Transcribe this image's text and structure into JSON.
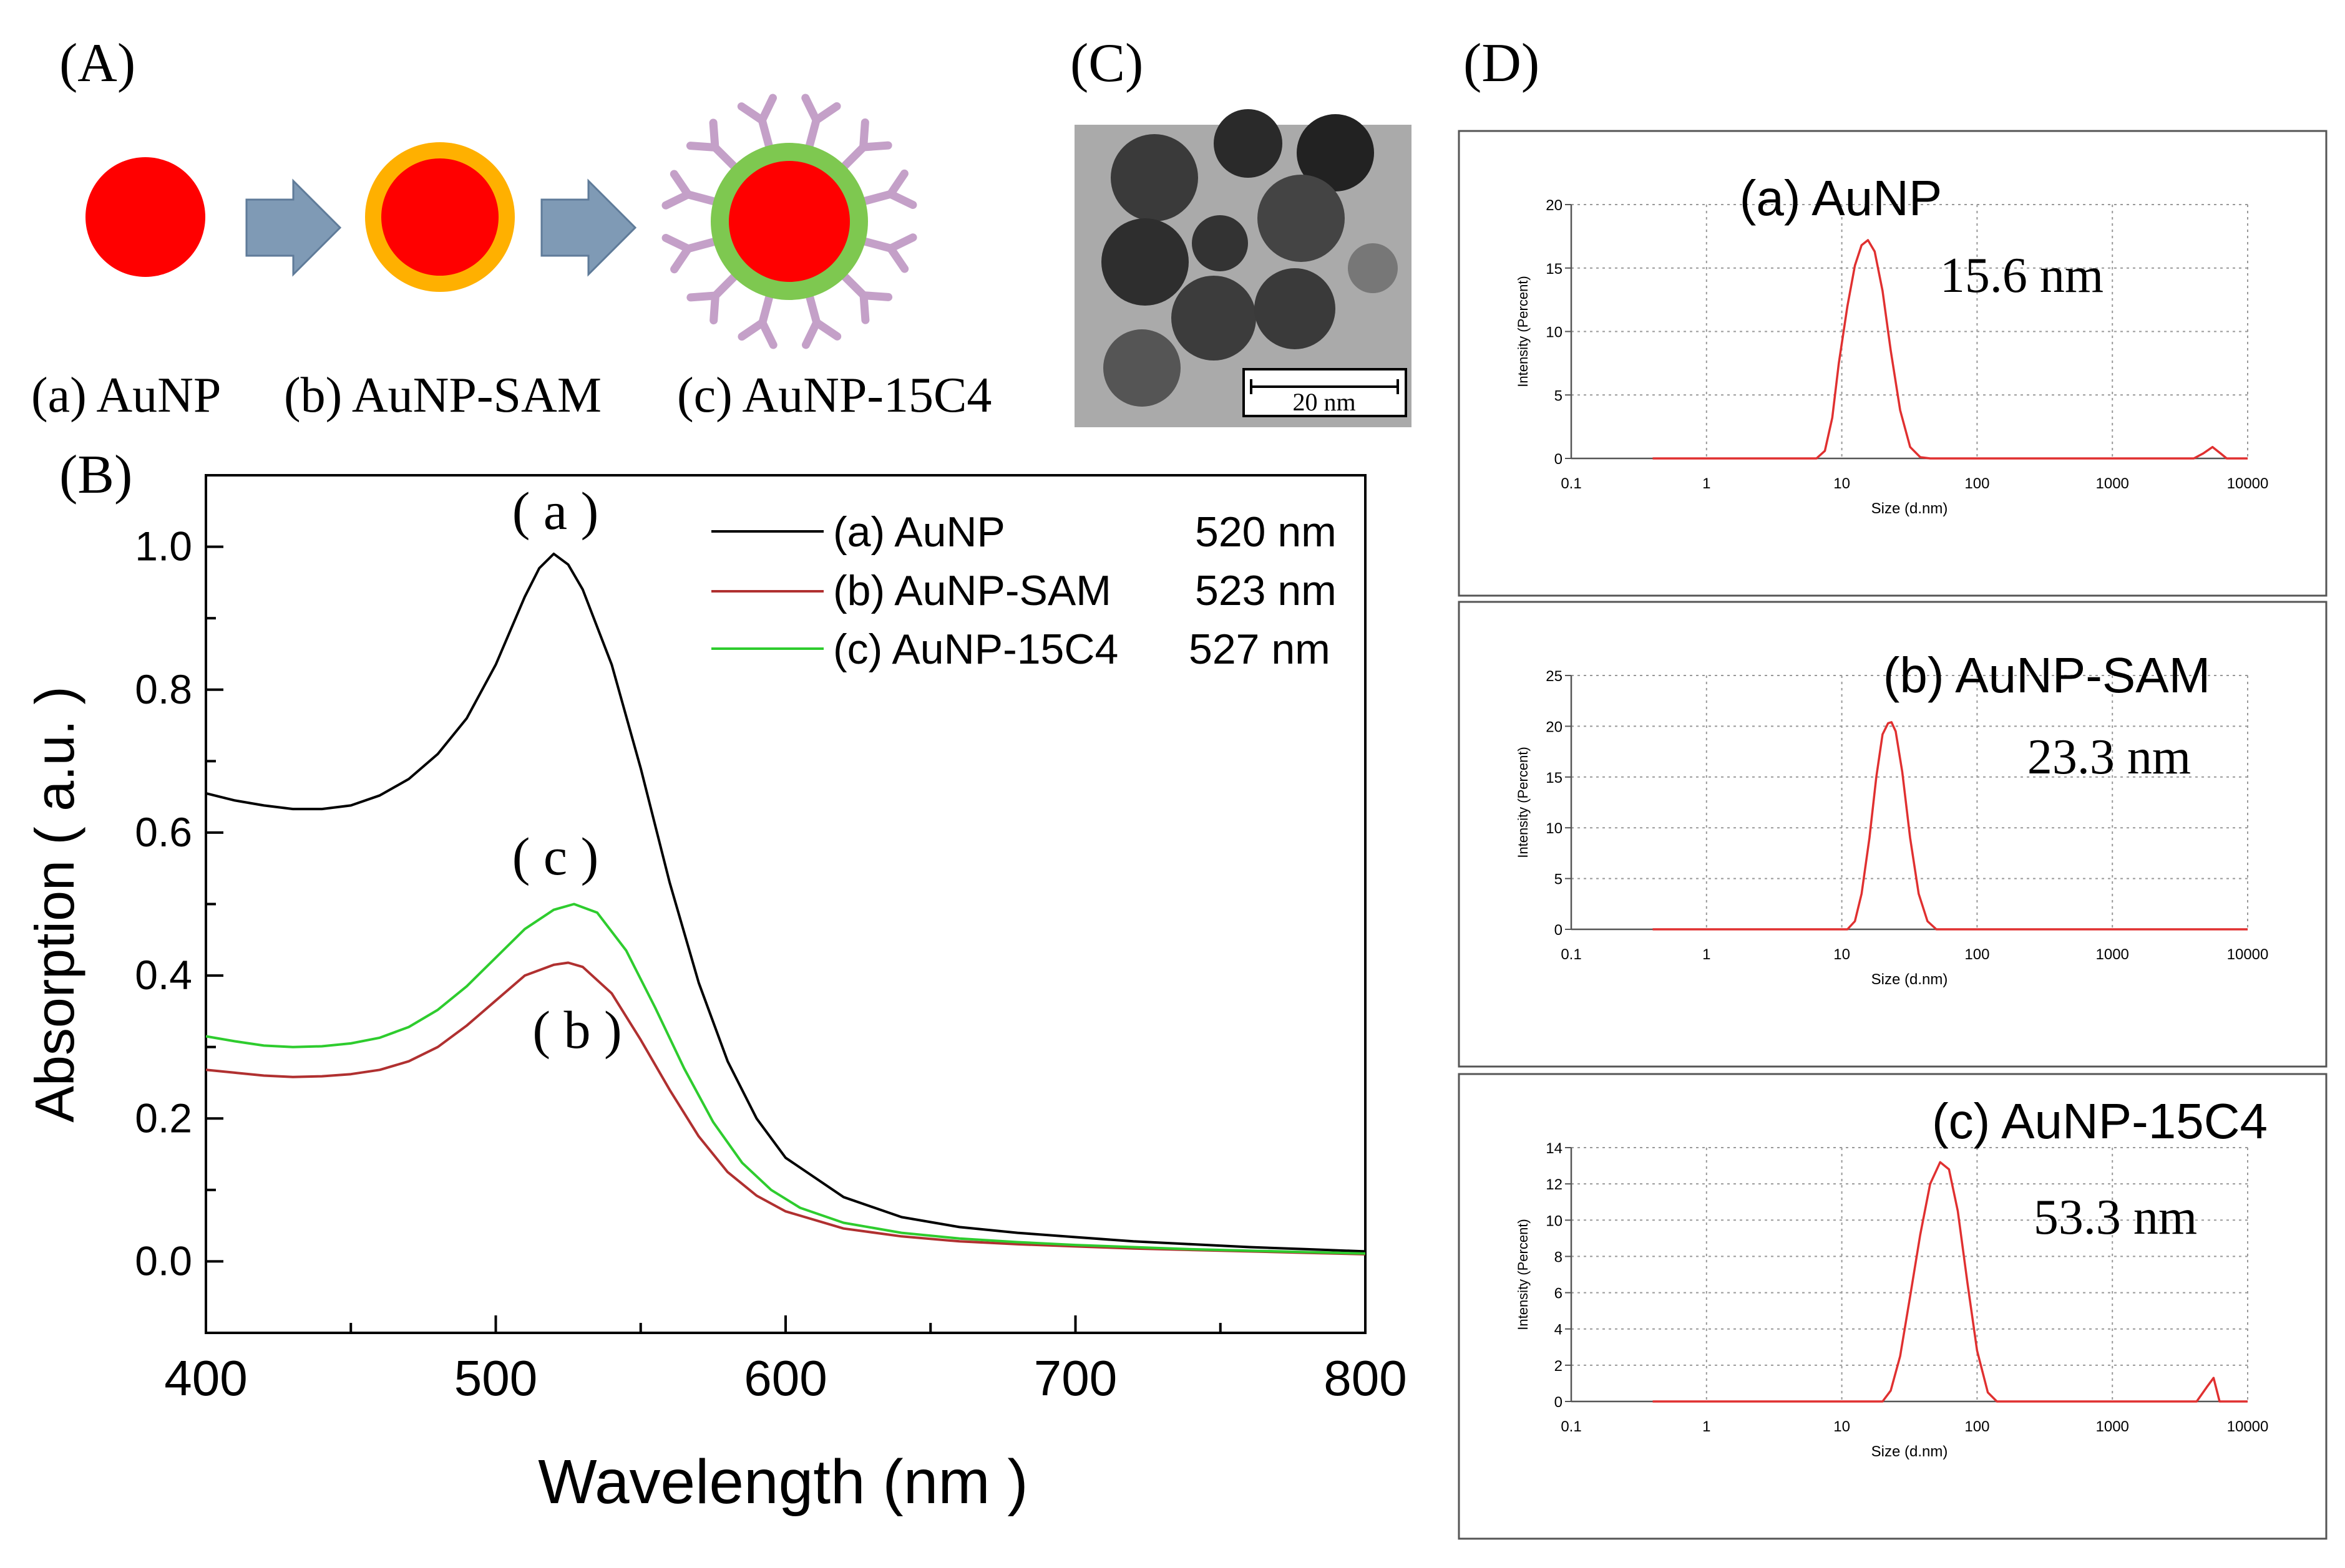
{
  "panels": {
    "A": {
      "label": "(A)",
      "captions": [
        "(a) AuNP",
        "(b) AuNP-SAM",
        "(c) AuNP-15C4"
      ]
    },
    "C": {
      "label": "(C)",
      "scale_bar": "20 nm"
    },
    "D": {
      "label": "(D)"
    }
  },
  "chart_data": [
    {
      "id": "B",
      "panel_label": "(B)",
      "type": "line",
      "title": "",
      "xlabel": "Wavelength (nm )",
      "ylabel": "Absorption ( a.u. )",
      "xlim": [
        400,
        800
      ],
      "ylim": [
        -0.1,
        1.1
      ],
      "xticks": [
        400,
        500,
        600,
        700,
        800
      ],
      "yticks": [
        "0.0",
        "0.2",
        "0.4",
        "0.6",
        "0.8",
        "1.0"
      ],
      "legend_position": "top-right",
      "series": [
        {
          "name": "(a) AuNP",
          "peak": "520 nm",
          "color": "#000000",
          "curve_label": "( a )",
          "x": [
            400,
            410,
            420,
            430,
            440,
            450,
            460,
            470,
            480,
            490,
            500,
            510,
            515,
            520,
            525,
            530,
            540,
            550,
            560,
            570,
            580,
            590,
            600,
            620,
            640,
            660,
            680,
            700,
            720,
            740,
            760,
            780,
            800
          ],
          "y": [
            0.655,
            0.645,
            0.638,
            0.633,
            0.633,
            0.638,
            0.652,
            0.675,
            0.71,
            0.76,
            0.835,
            0.93,
            0.97,
            0.99,
            0.975,
            0.94,
            0.835,
            0.69,
            0.53,
            0.39,
            0.28,
            0.2,
            0.145,
            0.09,
            0.062,
            0.048,
            0.04,
            0.034,
            0.028,
            0.024,
            0.02,
            0.017,
            0.014
          ]
        },
        {
          "name": "(b) AuNP-SAM",
          "peak": "523 nm",
          "color": "#b03030",
          "curve_label": "( b )",
          "x": [
            400,
            410,
            420,
            430,
            440,
            450,
            460,
            470,
            480,
            490,
            500,
            510,
            520,
            525,
            530,
            540,
            550,
            560,
            570,
            580,
            590,
            600,
            620,
            640,
            660,
            680,
            700,
            720,
            740,
            760,
            780,
            800
          ],
          "y": [
            0.268,
            0.264,
            0.26,
            0.258,
            0.259,
            0.262,
            0.268,
            0.28,
            0.3,
            0.33,
            0.365,
            0.4,
            0.415,
            0.418,
            0.412,
            0.375,
            0.31,
            0.24,
            0.175,
            0.125,
            0.092,
            0.07,
            0.046,
            0.035,
            0.028,
            0.024,
            0.021,
            0.018,
            0.016,
            0.014,
            0.012,
            0.01
          ]
        },
        {
          "name": "(c) AuNP-15C4",
          "peak": "527 nm",
          "color": "#2ecc2e",
          "curve_label": "( c )",
          "x": [
            400,
            410,
            420,
            430,
            440,
            450,
            460,
            470,
            480,
            490,
            500,
            510,
            520,
            527,
            535,
            545,
            555,
            565,
            575,
            585,
            595,
            605,
            620,
            640,
            660,
            680,
            700,
            720,
            740,
            760,
            780,
            800
          ],
          "y": [
            0.315,
            0.308,
            0.302,
            0.3,
            0.301,
            0.305,
            0.313,
            0.328,
            0.352,
            0.385,
            0.425,
            0.465,
            0.492,
            0.5,
            0.488,
            0.435,
            0.355,
            0.27,
            0.195,
            0.138,
            0.1,
            0.075,
            0.054,
            0.04,
            0.032,
            0.027,
            0.023,
            0.02,
            0.017,
            0.015,
            0.013,
            0.011
          ]
        }
      ]
    },
    {
      "id": "D-a",
      "type": "line",
      "title": "(a) AuNP",
      "annotation": "15.6 nm",
      "xlabel": "Size (d.nm)",
      "ylabel": "Intensity (Percent)",
      "xscale": "log",
      "xlim": [
        0.1,
        10000
      ],
      "ylim": [
        0,
        20
      ],
      "xticks": [
        "0.1",
        "1",
        "10",
        "100",
        "1000",
        "10000"
      ],
      "yticks": [
        "0",
        "5",
        "10",
        "15",
        "20"
      ],
      "color": "#e03030",
      "x": [
        0.4,
        6.5,
        7.5,
        8.5,
        9.5,
        11,
        12.5,
        14,
        15.6,
        17.5,
        20,
        23,
        27,
        32,
        38,
        45,
        4000,
        4700,
        5500,
        6300,
        7000,
        10000
      ],
      "y": [
        0,
        0,
        0.6,
        3.2,
        7.5,
        12,
        15.2,
        16.8,
        17.2,
        16.3,
        13.2,
        8.5,
        3.8,
        0.9,
        0.1,
        0,
        0,
        0.4,
        0.9,
        0.4,
        0,
        0
      ]
    },
    {
      "id": "D-b",
      "type": "line",
      "title": "(b) AuNP-SAM",
      "annotation": "23.3 nm",
      "xlabel": "Size (d.nm)",
      "ylabel": "Intensity (Percent)",
      "xscale": "log",
      "xlim": [
        0.1,
        10000
      ],
      "ylim": [
        0,
        25
      ],
      "xticks": [
        "0.1",
        "1",
        "10",
        "100",
        "1000",
        "10000"
      ],
      "yticks": [
        "0",
        "5",
        "10",
        "15",
        "20",
        "25"
      ],
      "color": "#e03030",
      "x": [
        0.4,
        11,
        12.5,
        14,
        16,
        18,
        20,
        22,
        23.3,
        25,
        28,
        32,
        37,
        43,
        50,
        10000
      ],
      "y": [
        0,
        0,
        0.8,
        3.5,
        9,
        15,
        19.2,
        20.3,
        20.4,
        19.5,
        15.5,
        9,
        3.5,
        0.8,
        0,
        0
      ]
    },
    {
      "id": "D-c",
      "type": "line",
      "title": "(c) AuNP-15C4",
      "annotation": "53.3 nm",
      "xlabel": "Size (d.nm)",
      "ylabel": "Intensity (Percent)",
      "xscale": "log",
      "xlim": [
        0.1,
        10000
      ],
      "ylim": [
        0,
        14
      ],
      "xticks": [
        "0.1",
        "1",
        "10",
        "100",
        "1000",
        "10000"
      ],
      "yticks": [
        "0",
        "2",
        "4",
        "6",
        "8",
        "10",
        "12",
        "14"
      ],
      "color": "#e03030",
      "x": [
        0.4,
        20,
        23,
        27,
        32,
        38,
        45,
        53.3,
        62,
        72,
        85,
        100,
        120,
        140,
        4200,
        5000,
        5600,
        6200,
        10000
      ],
      "y": [
        0,
        0,
        0.6,
        2.5,
        5.8,
        9.2,
        12,
        13.2,
        12.8,
        10.5,
        6.5,
        2.8,
        0.5,
        0,
        0,
        0.8,
        1.3,
        0,
        0
      ]
    }
  ]
}
